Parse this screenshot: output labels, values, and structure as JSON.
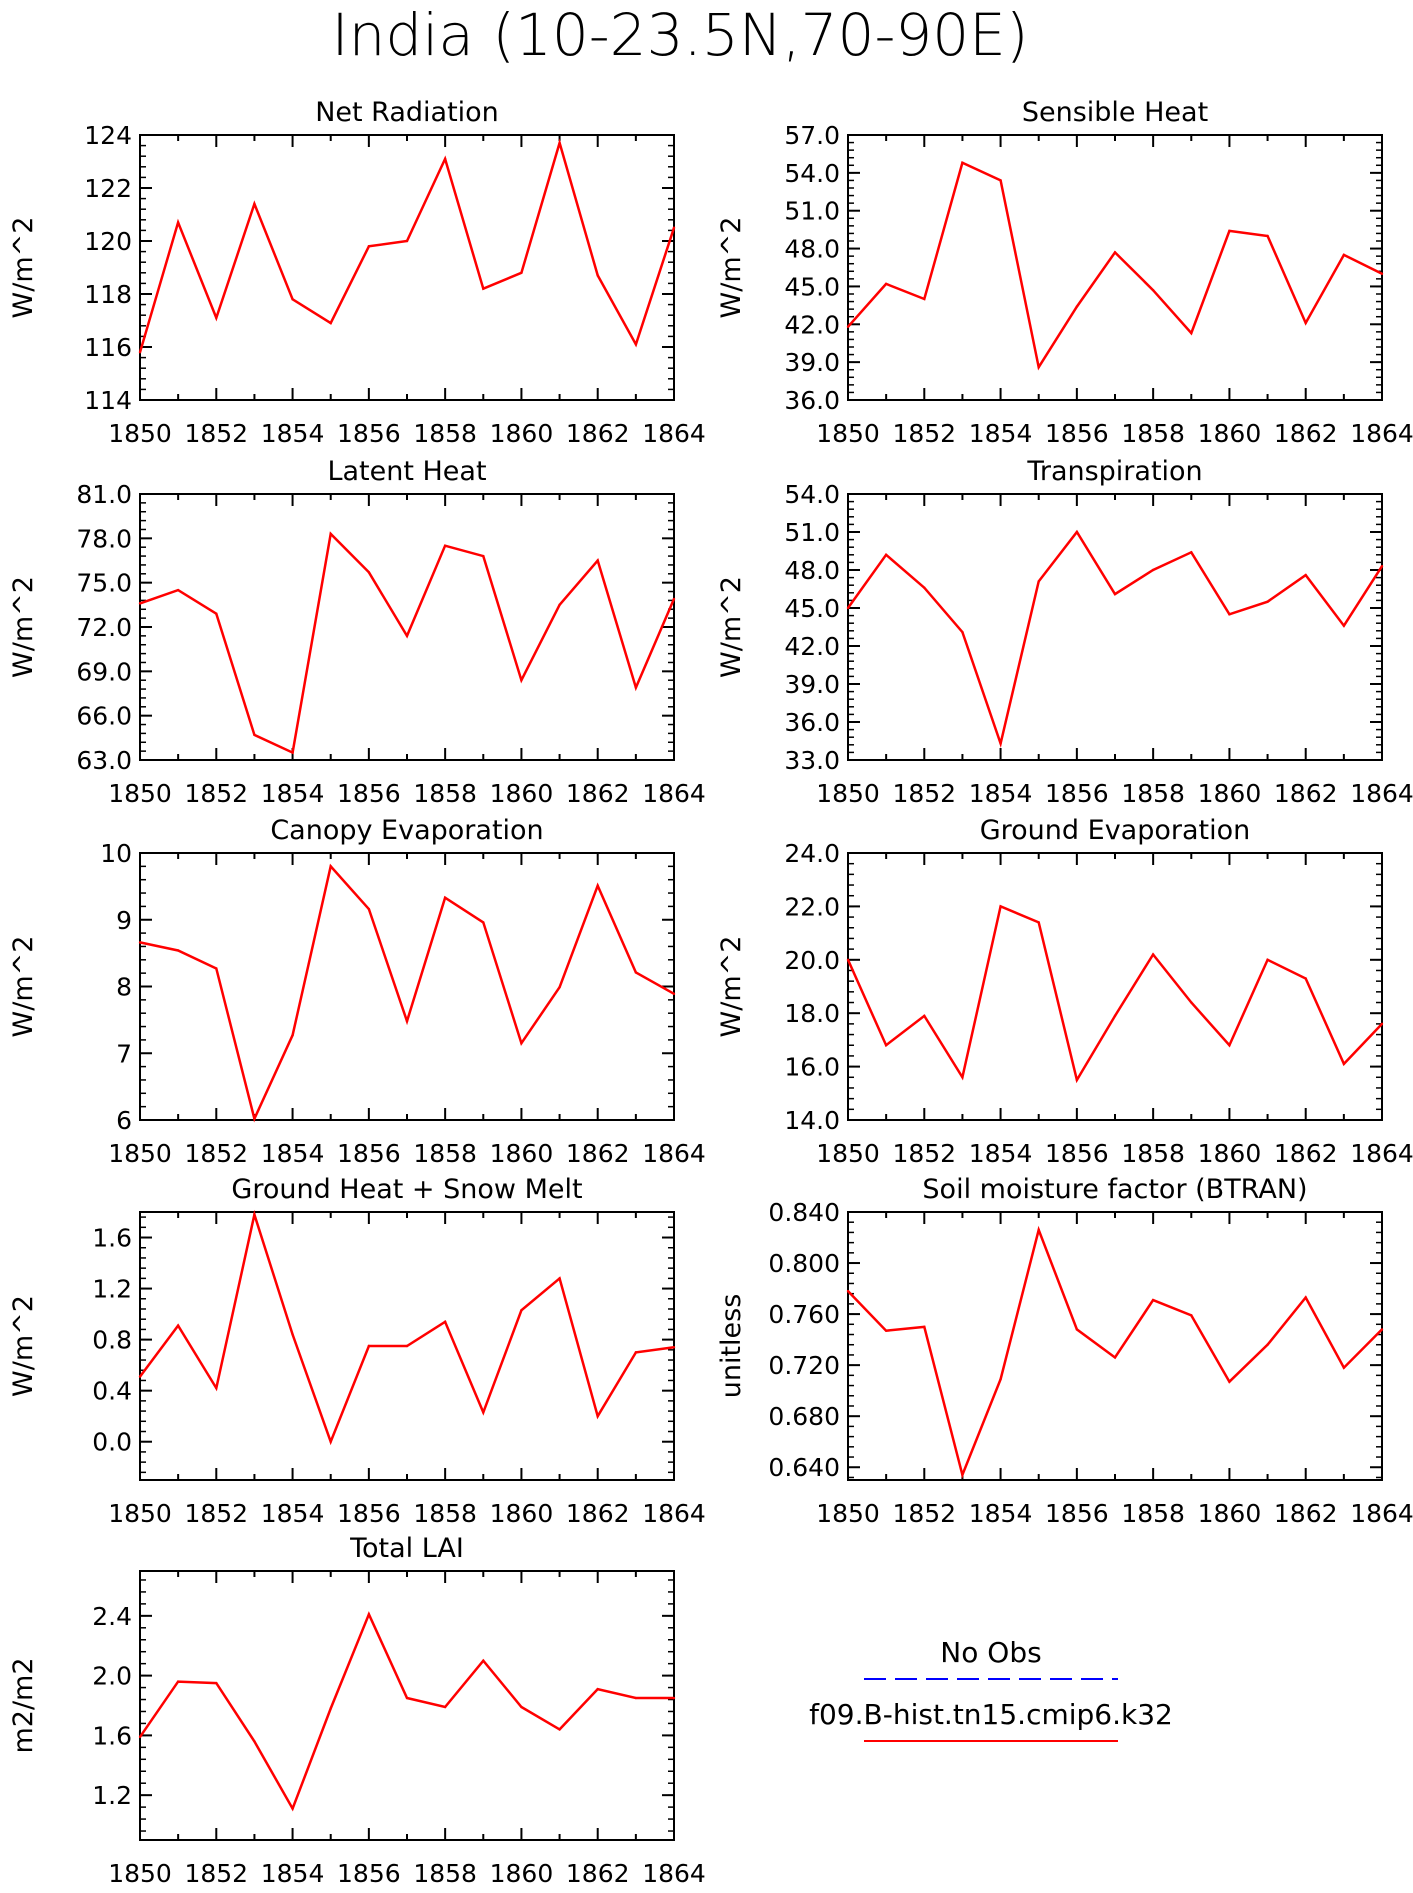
{
  "figure": {
    "title": "India (10-23.5N,70-90E)"
  },
  "colors": {
    "model_line": "#ff0000",
    "obs_line": "#0000ff",
    "axes": "#000000",
    "background": "#ffffff"
  },
  "legend": {
    "obs_label": "No Obs",
    "model_label": "f09.B-hist.tn15.cmip6.k32"
  },
  "chart_data": [
    {
      "type": "line",
      "title": "Net Radiation",
      "ylabel": "W/m^2",
      "x": [
        1850,
        1851,
        1852,
        1853,
        1854,
        1855,
        1856,
        1857,
        1858,
        1859,
        1860,
        1861,
        1862,
        1863,
        1864
      ],
      "xlim": [
        1850,
        1864
      ],
      "xticks": [
        "1850",
        "1852",
        "1854",
        "1856",
        "1858",
        "1860",
        "1862",
        "1864"
      ],
      "ylim": [
        114,
        124
      ],
      "yticks": [
        "114",
        "116",
        "118",
        "120",
        "122",
        "124"
      ],
      "series": [
        {
          "values": [
            115.8,
            120.7,
            117.1,
            121.4,
            117.8,
            116.9,
            119.8,
            120.0,
            123.1,
            118.2,
            118.8,
            123.7,
            118.7,
            116.1,
            120.5
          ]
        }
      ]
    },
    {
      "type": "line",
      "title": "Sensible Heat",
      "ylabel": "W/m^2",
      "x": [
        1850,
        1851,
        1852,
        1853,
        1854,
        1855,
        1856,
        1857,
        1858,
        1859,
        1860,
        1861,
        1862,
        1863,
        1864
      ],
      "xlim": [
        1850,
        1864
      ],
      "xticks": [
        "1850",
        "1852",
        "1854",
        "1856",
        "1858",
        "1860",
        "1862",
        "1864"
      ],
      "ylim": [
        36,
        57
      ],
      "yticks": [
        "36.0",
        "39.0",
        "42.0",
        "45.0",
        "48.0",
        "51.0",
        "54.0",
        "57.0"
      ],
      "series": [
        {
          "values": [
            41.8,
            45.2,
            44.0,
            54.8,
            53.4,
            38.6,
            43.4,
            47.7,
            44.7,
            41.3,
            49.4,
            49.0,
            42.1,
            47.5,
            46.0
          ]
        }
      ]
    },
    {
      "type": "line",
      "title": "Latent Heat",
      "ylabel": "W/m^2",
      "x": [
        1850,
        1851,
        1852,
        1853,
        1854,
        1855,
        1856,
        1857,
        1858,
        1859,
        1860,
        1861,
        1862,
        1863,
        1864
      ],
      "xlim": [
        1850,
        1864
      ],
      "xticks": [
        "1850",
        "1852",
        "1854",
        "1856",
        "1858",
        "1860",
        "1862",
        "1864"
      ],
      "ylim": [
        63,
        81
      ],
      "yticks": [
        "63.0",
        "66.0",
        "69.0",
        "72.0",
        "75.0",
        "78.0",
        "81.0"
      ],
      "series": [
        {
          "values": [
            73.6,
            74.5,
            72.9,
            64.7,
            63.5,
            78.3,
            75.7,
            71.4,
            77.5,
            76.8,
            68.4,
            73.5,
            76.5,
            67.9,
            73.9
          ]
        }
      ]
    },
    {
      "type": "line",
      "title": "Transpiration",
      "ylabel": "W/m^2",
      "x": [
        1850,
        1851,
        1852,
        1853,
        1854,
        1855,
        1856,
        1857,
        1858,
        1859,
        1860,
        1861,
        1862,
        1863,
        1864
      ],
      "xlim": [
        1850,
        1864
      ],
      "xticks": [
        "1850",
        "1852",
        "1854",
        "1856",
        "1858",
        "1860",
        "1862",
        "1864"
      ],
      "ylim": [
        33,
        54
      ],
      "yticks": [
        "33.0",
        "36.0",
        "39.0",
        "42.0",
        "45.0",
        "48.0",
        "51.0",
        "54.0"
      ],
      "series": [
        {
          "values": [
            45.0,
            49.2,
            46.6,
            43.1,
            34.3,
            47.1,
            51.0,
            46.1,
            48.0,
            49.4,
            44.5,
            45.5,
            47.6,
            43.6,
            48.3
          ]
        }
      ]
    },
    {
      "type": "line",
      "title": "Canopy Evaporation",
      "ylabel": "W/m^2",
      "x": [
        1850,
        1851,
        1852,
        1853,
        1854,
        1855,
        1856,
        1857,
        1858,
        1859,
        1860,
        1861,
        1862,
        1863,
        1864
      ],
      "xlim": [
        1850,
        1864
      ],
      "xticks": [
        "1850",
        "1852",
        "1854",
        "1856",
        "1858",
        "1860",
        "1862",
        "1864"
      ],
      "ylim": [
        6,
        10
      ],
      "yticks": [
        "6",
        "7",
        "8",
        "9",
        "10"
      ],
      "series": [
        {
          "values": [
            8.66,
            8.54,
            8.27,
            6.02,
            7.27,
            9.8,
            9.16,
            7.48,
            9.33,
            8.96,
            7.15,
            7.99,
            9.51,
            8.21,
            7.89
          ]
        }
      ]
    },
    {
      "type": "line",
      "title": "Ground Evaporation",
      "ylabel": "W/m^2",
      "x": [
        1850,
        1851,
        1852,
        1853,
        1854,
        1855,
        1856,
        1857,
        1858,
        1859,
        1860,
        1861,
        1862,
        1863,
        1864
      ],
      "xlim": [
        1850,
        1864
      ],
      "xticks": [
        "1850",
        "1852",
        "1854",
        "1856",
        "1858",
        "1860",
        "1862",
        "1864"
      ],
      "ylim": [
        14,
        24
      ],
      "yticks": [
        "14.0",
        "16.0",
        "18.0",
        "20.0",
        "22.0",
        "24.0"
      ],
      "series": [
        {
          "values": [
            20.0,
            16.8,
            17.9,
            15.6,
            22.0,
            21.4,
            15.5,
            17.9,
            20.2,
            18.4,
            16.8,
            20.0,
            19.3,
            16.1,
            17.6
          ]
        }
      ]
    },
    {
      "type": "line",
      "title": "Ground Heat + Snow Melt",
      "ylabel": "W/m^2",
      "x": [
        1850,
        1851,
        1852,
        1853,
        1854,
        1855,
        1856,
        1857,
        1858,
        1859,
        1860,
        1861,
        1862,
        1863,
        1864
      ],
      "xlim": [
        1850,
        1864
      ],
      "xticks": [
        "1850",
        "1852",
        "1854",
        "1856",
        "1858",
        "1860",
        "1862",
        "1864"
      ],
      "ylim": [
        -0.3,
        1.8
      ],
      "yticks": [
        "0.0",
        "0.4",
        "0.8",
        "1.2",
        "1.6"
      ],
      "ytick_values": [
        0.0,
        0.4,
        0.8,
        1.2,
        1.6
      ],
      "series": [
        {
          "values": [
            0.51,
            0.91,
            0.42,
            1.78,
            0.84,
            0.0,
            0.75,
            0.75,
            0.94,
            0.23,
            1.03,
            1.28,
            0.2,
            0.7,
            0.74
          ]
        }
      ]
    },
    {
      "type": "line",
      "title": "Soil moisture factor (BTRAN)",
      "ylabel": "unitless",
      "x": [
        1850,
        1851,
        1852,
        1853,
        1854,
        1855,
        1856,
        1857,
        1858,
        1859,
        1860,
        1861,
        1862,
        1863,
        1864
      ],
      "xlim": [
        1850,
        1864
      ],
      "xticks": [
        "1850",
        "1852",
        "1854",
        "1856",
        "1858",
        "1860",
        "1862",
        "1864"
      ],
      "ylim": [
        0.63,
        0.84
      ],
      "yticks": [
        "0.640",
        "0.680",
        "0.720",
        "0.760",
        "0.800",
        "0.840"
      ],
      "ytick_values": [
        0.64,
        0.68,
        0.72,
        0.76,
        0.8,
        0.84
      ],
      "series": [
        {
          "values": [
            0.778,
            0.747,
            0.75,
            0.634,
            0.709,
            0.826,
            0.748,
            0.726,
            0.771,
            0.759,
            0.707,
            0.736,
            0.773,
            0.718,
            0.748
          ]
        }
      ]
    },
    {
      "type": "line",
      "title": "Total LAI",
      "ylabel": "m2/m2",
      "x": [
        1850,
        1851,
        1852,
        1853,
        1854,
        1855,
        1856,
        1857,
        1858,
        1859,
        1860,
        1861,
        1862,
        1863,
        1864
      ],
      "xlim": [
        1850,
        1864
      ],
      "xticks": [
        "1850",
        "1852",
        "1854",
        "1856",
        "1858",
        "1860",
        "1862",
        "1864"
      ],
      "ylim": [
        0.9,
        2.7
      ],
      "yticks": [
        "1.2",
        "1.6",
        "2.0",
        "2.4"
      ],
      "ytick_values": [
        1.2,
        1.6,
        2.0,
        2.4
      ],
      "series": [
        {
          "values": [
            1.59,
            1.96,
            1.95,
            1.56,
            1.11,
            1.78,
            2.41,
            1.85,
            1.79,
            2.1,
            1.79,
            1.64,
            1.91,
            1.85,
            1.85
          ]
        }
      ]
    }
  ]
}
